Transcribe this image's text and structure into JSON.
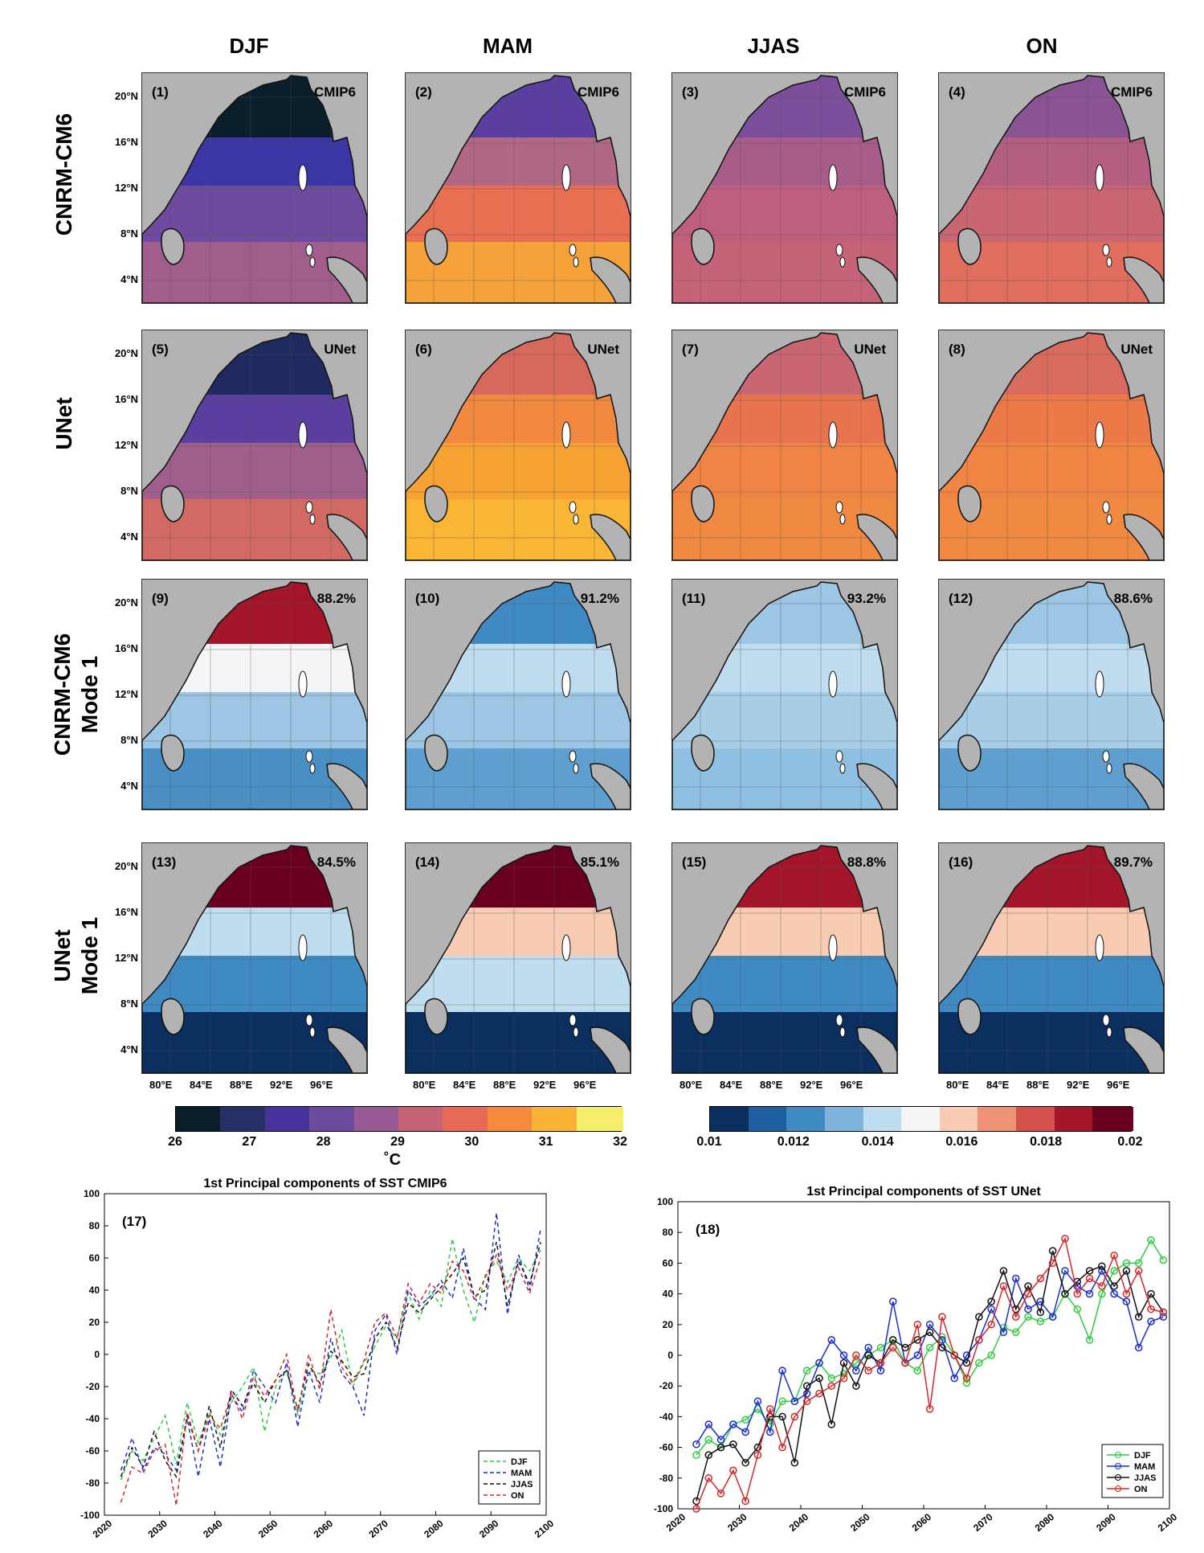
{
  "seasons": [
    "DJF",
    "MAM",
    "JJAS",
    "ON"
  ],
  "row_labels": [
    {
      "line1": "CNRM-CM6",
      "line2": ""
    },
    {
      "line1": "UNet",
      "line2": ""
    },
    {
      "line1": "CNRM-CM6",
      "line2": "Mode 1"
    },
    {
      "line1": "UNet",
      "line2": "Mode 1"
    }
  ],
  "map_panels": [
    {
      "id": "(1)",
      "tag": "CMIP6"
    },
    {
      "id": "(2)",
      "tag": "CMIP6"
    },
    {
      "id": "(3)",
      "tag": "CMIP6"
    },
    {
      "id": "(4)",
      "tag": "CMIP6"
    },
    {
      "id": "(5)",
      "tag": "UNet"
    },
    {
      "id": "(6)",
      "tag": "UNet"
    },
    {
      "id": "(7)",
      "tag": "UNet"
    },
    {
      "id": "(8)",
      "tag": "UNet"
    },
    {
      "id": "(9)",
      "tag": "88.2%"
    },
    {
      "id": "(10)",
      "tag": "91.2%"
    },
    {
      "id": "(11)",
      "tag": "93.2%"
    },
    {
      "id": "(12)",
      "tag": "88.6%"
    },
    {
      "id": "(13)",
      "tag": "84.5%"
    },
    {
      "id": "(14)",
      "tag": "85.1%"
    },
    {
      "id": "(15)",
      "tag": "88.8%"
    },
    {
      "id": "(16)",
      "tag": "89.7%"
    }
  ],
  "lat_labels": [
    "20°N",
    "16°N",
    "12°N",
    "8°N",
    "4°N"
  ],
  "lon_labels": [
    "80°E",
    "84°E",
    "88°E",
    "92°E",
    "96°E"
  ],
  "colorbar_sst": {
    "ticks": [
      "26",
      "27",
      "28",
      "29",
      "30",
      "31",
      "32"
    ],
    "unit": "˚C",
    "colors": [
      "#0b1e2b",
      "#263067",
      "#47329e",
      "#6c4a9e",
      "#975a94",
      "#c56277",
      "#e66a56",
      "#f38a3c",
      "#f9b234",
      "#f4ee6a"
    ]
  },
  "colorbar_mode": {
    "ticks": [
      "0.01",
      "0.012",
      "0.014",
      "0.016",
      "0.018",
      "0.02"
    ],
    "colors": [
      "#0b2f5e",
      "#1d5fa1",
      "#3f8ac3",
      "#7fb5db",
      "#c0dcef",
      "#f4f5f6",
      "#f8cbb3",
      "#ef9276",
      "#d4514b",
      "#a31629",
      "#6a0020"
    ]
  },
  "chart_data": [
    {
      "type": "line",
      "panel": "(17)",
      "title": "1st Principal components of SST CMIP6",
      "xlim": [
        2020,
        2100
      ],
      "ylim": [
        -100,
        100
      ],
      "xticks": [
        2020,
        2030,
        2040,
        2050,
        2060,
        2070,
        2080,
        2090,
        2100
      ],
      "yticks": [
        -100,
        -80,
        -60,
        -40,
        -20,
        0,
        20,
        40,
        60,
        80,
        100
      ],
      "style": "dashed",
      "legend_position": "lower-right",
      "series": [
        {
          "name": "DJF",
          "color": "#2ecc40",
          "x": [
            2023,
            2025,
            2027,
            2029,
            2031,
            2033,
            2035,
            2037,
            2039,
            2041,
            2043,
            2045,
            2047,
            2049,
            2051,
            2053,
            2055,
            2057,
            2059,
            2061,
            2063,
            2065,
            2067,
            2069,
            2071,
            2073,
            2075,
            2077,
            2079,
            2081,
            2083,
            2085,
            2087,
            2089,
            2091,
            2093,
            2095,
            2097,
            2099
          ],
          "y": [
            -78,
            -60,
            -66,
            -52,
            -38,
            -68,
            -30,
            -55,
            -36,
            -50,
            -30,
            -20,
            -8,
            -48,
            -20,
            -10,
            -38,
            -10,
            -12,
            -2,
            15,
            -20,
            -5,
            5,
            18,
            10,
            38,
            22,
            40,
            30,
            72,
            40,
            20,
            50,
            58,
            45,
            60,
            52,
            65
          ]
        },
        {
          "name": "MAM",
          "color": "#1a2bd0",
          "x": [
            2023,
            2025,
            2027,
            2029,
            2031,
            2033,
            2035,
            2037,
            2039,
            2041,
            2043,
            2045,
            2047,
            2049,
            2051,
            2053,
            2055,
            2057,
            2059,
            2061,
            2063,
            2065,
            2067,
            2069,
            2071,
            2073,
            2075,
            2077,
            2079,
            2081,
            2083,
            2085,
            2087,
            2089,
            2091,
            2093,
            2095,
            2097,
            2099
          ],
          "y": [
            -72,
            -52,
            -72,
            -58,
            -62,
            -72,
            -40,
            -76,
            -40,
            -70,
            -25,
            -36,
            -10,
            -20,
            -30,
            -5,
            -45,
            -10,
            -30,
            10,
            -12,
            -20,
            -38,
            15,
            25,
            0,
            40,
            30,
            36,
            46,
            35,
            66,
            35,
            28,
            88,
            25,
            62,
            40,
            78
          ]
        },
        {
          "name": "JJAS",
          "color": "#111111",
          "x": [
            2023,
            2025,
            2027,
            2029,
            2031,
            2033,
            2035,
            2037,
            2039,
            2041,
            2043,
            2045,
            2047,
            2049,
            2051,
            2053,
            2055,
            2057,
            2059,
            2061,
            2063,
            2065,
            2067,
            2069,
            2071,
            2073,
            2075,
            2077,
            2079,
            2081,
            2083,
            2085,
            2087,
            2089,
            2091,
            2093,
            2095,
            2097,
            2099
          ],
          "y": [
            -76,
            -58,
            -70,
            -48,
            -66,
            -76,
            -38,
            -60,
            -32,
            -58,
            -22,
            -32,
            -18,
            -30,
            -16,
            -10,
            -34,
            -6,
            -18,
            2,
            -4,
            -14,
            -12,
            10,
            20,
            4,
            32,
            26,
            34,
            42,
            50,
            60,
            36,
            40,
            70,
            30,
            58,
            44,
            70
          ]
        },
        {
          "name": "ON",
          "color": "#d62728",
          "x": [
            2023,
            2025,
            2027,
            2029,
            2031,
            2033,
            2035,
            2037,
            2039,
            2041,
            2043,
            2045,
            2047,
            2049,
            2051,
            2053,
            2055,
            2057,
            2059,
            2061,
            2063,
            2065,
            2067,
            2069,
            2071,
            2073,
            2075,
            2077,
            2079,
            2081,
            2083,
            2085,
            2087,
            2089,
            2091,
            2093,
            2095,
            2097,
            2099
          ],
          "y": [
            -92,
            -70,
            -74,
            -60,
            -56,
            -94,
            -36,
            -60,
            -38,
            -46,
            -24,
            -40,
            -14,
            -26,
            -16,
            0,
            -36,
            0,
            -22,
            28,
            -8,
            -18,
            -4,
            20,
            26,
            10,
            44,
            32,
            44,
            38,
            58,
            52,
            34,
            48,
            62,
            40,
            54,
            38,
            60
          ]
        }
      ]
    },
    {
      "type": "line",
      "panel": "(18)",
      "title": "1st Principal components of SST UNet",
      "xlim": [
        2020,
        2100
      ],
      "ylim": [
        -100,
        100
      ],
      "xticks": [
        2020,
        2030,
        2040,
        2050,
        2060,
        2070,
        2080,
        2090,
        2100
      ],
      "yticks": [
        -100,
        -80,
        -60,
        -40,
        -20,
        0,
        20,
        40,
        60,
        80,
        100
      ],
      "style": "solid-circle-markers",
      "legend_position": "lower-right",
      "series": [
        {
          "name": "DJF",
          "color": "#2ecc40",
          "x": [
            2023,
            2025,
            2027,
            2029,
            2031,
            2033,
            2035,
            2037,
            2039,
            2041,
            2043,
            2045,
            2047,
            2049,
            2051,
            2053,
            2055,
            2057,
            2059,
            2061,
            2063,
            2065,
            2067,
            2069,
            2071,
            2073,
            2075,
            2077,
            2079,
            2081,
            2083,
            2085,
            2087,
            2089,
            2091,
            2093,
            2095,
            2097,
            2099
          ],
          "y": [
            -65,
            -55,
            -60,
            -45,
            -42,
            -35,
            -45,
            -30,
            -30,
            -10,
            -5,
            -15,
            -12,
            -5,
            0,
            5,
            10,
            -5,
            -10,
            5,
            12,
            0,
            -18,
            -5,
            0,
            18,
            15,
            25,
            22,
            25,
            40,
            30,
            10,
            40,
            55,
            60,
            60,
            75,
            62
          ]
        },
        {
          "name": "MAM",
          "color": "#1a2bd0",
          "x": [
            2023,
            2025,
            2027,
            2029,
            2031,
            2033,
            2035,
            2037,
            2039,
            2041,
            2043,
            2045,
            2047,
            2049,
            2051,
            2053,
            2055,
            2057,
            2059,
            2061,
            2063,
            2065,
            2067,
            2069,
            2071,
            2073,
            2075,
            2077,
            2079,
            2081,
            2083,
            2085,
            2087,
            2089,
            2091,
            2093,
            2095,
            2097,
            2099
          ],
          "y": [
            -58,
            -45,
            -55,
            -45,
            -50,
            -30,
            -50,
            -10,
            -30,
            -25,
            -5,
            10,
            0,
            -10,
            5,
            -10,
            35,
            -5,
            0,
            20,
            10,
            -15,
            0,
            10,
            30,
            15,
            50,
            30,
            35,
            25,
            55,
            45,
            40,
            55,
            40,
            35,
            5,
            22,
            25
          ]
        },
        {
          "name": "JJAS",
          "color": "#111111",
          "x": [
            2023,
            2025,
            2027,
            2029,
            2031,
            2033,
            2035,
            2037,
            2039,
            2041,
            2043,
            2045,
            2047,
            2049,
            2051,
            2053,
            2055,
            2057,
            2059,
            2061,
            2063,
            2065,
            2067,
            2069,
            2071,
            2073,
            2075,
            2077,
            2079,
            2081,
            2083,
            2085,
            2087,
            2089,
            2091,
            2093,
            2095,
            2097,
            2099
          ],
          "y": [
            -95,
            -65,
            -60,
            -58,
            -70,
            -60,
            -40,
            -40,
            -70,
            -20,
            -15,
            -45,
            -5,
            -20,
            0,
            -5,
            10,
            5,
            10,
            15,
            5,
            0,
            -5,
            25,
            35,
            55,
            30,
            45,
            28,
            68,
            40,
            48,
            55,
            58,
            45,
            55,
            25,
            40,
            28
          ]
        },
        {
          "name": "ON",
          "color": "#d62728",
          "x": [
            2023,
            2025,
            2027,
            2029,
            2031,
            2033,
            2035,
            2037,
            2039,
            2041,
            2043,
            2045,
            2047,
            2049,
            2051,
            2053,
            2055,
            2057,
            2059,
            2061,
            2063,
            2065,
            2067,
            2069,
            2071,
            2073,
            2075,
            2077,
            2079,
            2081,
            2083,
            2085,
            2087,
            2089,
            2091,
            2093,
            2095,
            2097,
            2099
          ],
          "y": [
            -100,
            -80,
            -90,
            -75,
            -95,
            -65,
            -35,
            -60,
            -40,
            -30,
            -25,
            -20,
            -15,
            0,
            -10,
            -5,
            5,
            -5,
            20,
            -35,
            25,
            0,
            -15,
            10,
            20,
            45,
            25,
            40,
            50,
            60,
            76,
            40,
            50,
            45,
            65,
            40,
            55,
            30,
            28
          ]
        }
      ]
    }
  ]
}
